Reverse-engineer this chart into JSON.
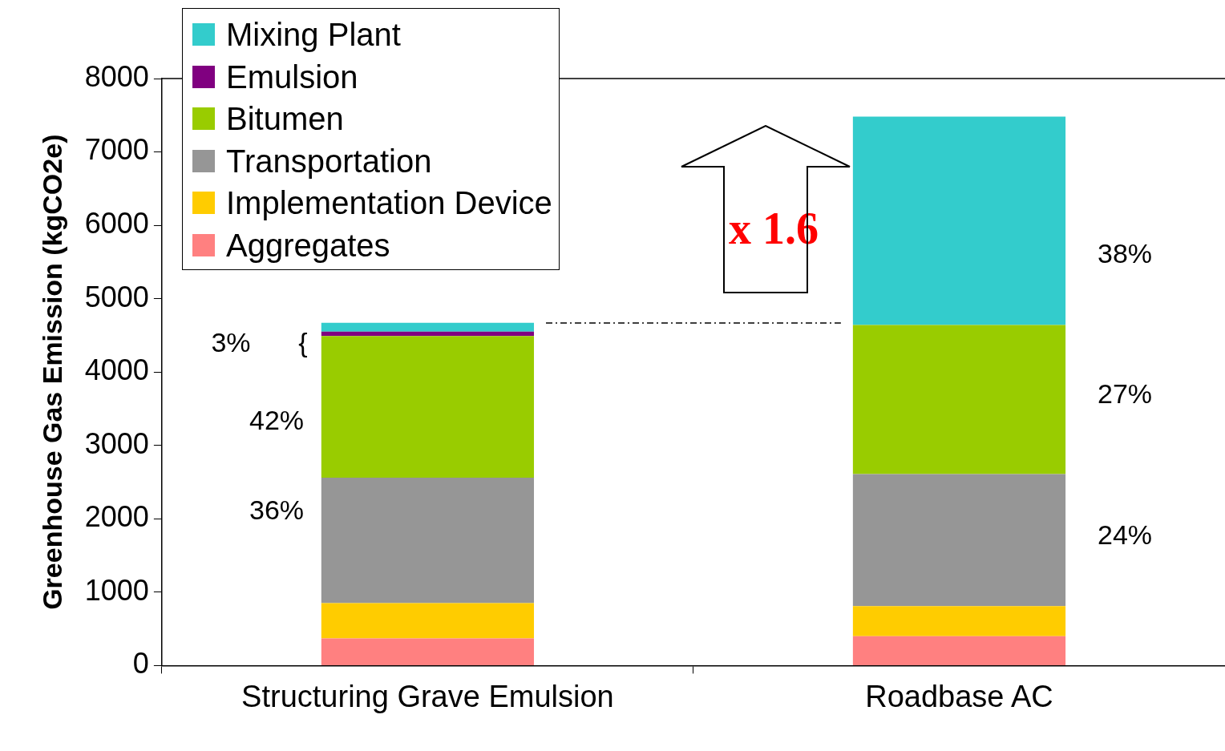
{
  "chart_data": {
    "type": "bar",
    "stacked": true,
    "ylabel": "Greenhouse Gas Emission (kgCO2e)",
    "categories": [
      "Structuring Grave Emulsion",
      "Roadbase AC"
    ],
    "series": [
      {
        "name": "Aggregates",
        "color": "#ff8080",
        "values": [
          370,
          400
        ]
      },
      {
        "name": "Implementation Device",
        "color": "#ffcc00",
        "values": [
          480,
          410
        ]
      },
      {
        "name": "Transportation",
        "color": "#969696",
        "values": [
          1710,
          1800
        ]
      },
      {
        "name": "Bitumen",
        "color": "#99cc00",
        "values": [
          1930,
          2030
        ]
      },
      {
        "name": "Emulsion",
        "color": "#800080",
        "values": [
          60,
          null
        ]
      },
      {
        "name": "Mixing Plant",
        "color": "#33cccc",
        "values": [
          120,
          2840
        ]
      }
    ],
    "ylim": [
      0,
      8000
    ],
    "yticks": [
      0,
      1000,
      2000,
      3000,
      4000,
      5000,
      6000,
      7000,
      8000
    ],
    "grid": false,
    "legend": "top left",
    "ref_lines": [
      {
        "axis": "y",
        "value": 4668,
        "line_style": "dashdot"
      }
    ],
    "annotations": [
      "3%",
      "{",
      "42%",
      "36%",
      "38%",
      "27%",
      "24%",
      "x 1.6"
    ]
  }
}
